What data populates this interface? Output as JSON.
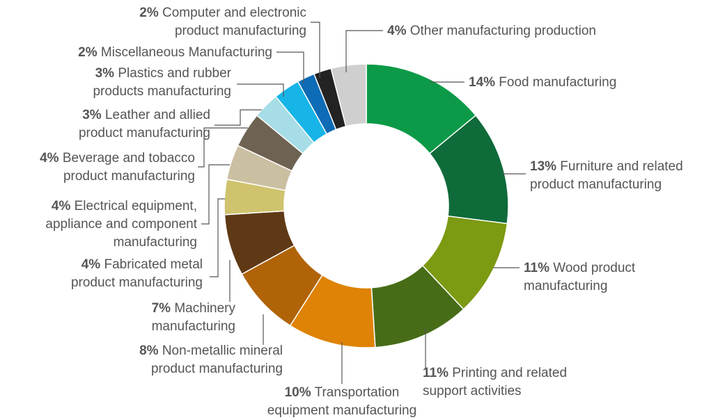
{
  "chart_data": {
    "type": "pie",
    "variant": "donut",
    "title": "",
    "legend": "none",
    "slices": [
      {
        "percent": 14,
        "pct_label": "14%",
        "label_lines": [
          "Food manufacturing"
        ],
        "color": "#0c9a48"
      },
      {
        "percent": 13,
        "pct_label": "13%",
        "label_lines": [
          "Furniture and related",
          "product manufacturing"
        ],
        "color": "#0f6b3a"
      },
      {
        "percent": 11,
        "pct_label": "11%",
        "label_lines": [
          "Wood product",
          "manufacturing"
        ],
        "color": "#7c9a12"
      },
      {
        "percent": 11,
        "pct_label": "11%",
        "label_lines": [
          "Printing and related",
          "support activities"
        ],
        "color": "#476c17"
      },
      {
        "percent": 10,
        "pct_label": "10%",
        "label_lines": [
          "Transportation",
          "equipment manufacturing"
        ],
        "color": "#de8305"
      },
      {
        "percent": 8,
        "pct_label": "8%",
        "label_lines": [
          "Non-metallic mineral",
          "product manufacturing"
        ],
        "color": "#b06307"
      },
      {
        "percent": 7,
        "pct_label": "7%",
        "label_lines": [
          "Machinery",
          "manufacturing"
        ],
        "color": "#5f3915"
      },
      {
        "percent": 4,
        "pct_label": "4%",
        "label_lines": [
          "Fabricated metal",
          "product manufacturing"
        ],
        "color": "#d0c36e"
      },
      {
        "percent": 4,
        "pct_label": "4%",
        "label_lines": [
          "Electrical equipment,",
          "appliance and component",
          "manufacturing"
        ],
        "color": "#cbbfa2"
      },
      {
        "percent": 4,
        "pct_label": "4%",
        "label_lines": [
          "Beverage and tobacco",
          "product manufacturing"
        ],
        "color": "#6e6252"
      },
      {
        "percent": 3,
        "pct_label": "3%",
        "label_lines": [
          "Leather and allied",
          "product manufacturing"
        ],
        "color": "#a6dde6"
      },
      {
        "percent": 3,
        "pct_label": "3%",
        "label_lines": [
          "Plastics and rubber",
          "products manufacturing"
        ],
        "color": "#17b4e8"
      },
      {
        "percent": 2,
        "pct_label": "2%",
        "label_lines": [
          "Miscellaneous Manufacturing"
        ],
        "color": "#0e6bb6"
      },
      {
        "percent": 2,
        "pct_label": "2%",
        "label_lines": [
          "Computer and electronic",
          "product manufacturing"
        ],
        "color": "#232323"
      },
      {
        "percent": 4,
        "pct_label": "4%",
        "label_lines": [
          "Other manufacturing production"
        ],
        "color": "#cfcfcf"
      }
    ]
  }
}
